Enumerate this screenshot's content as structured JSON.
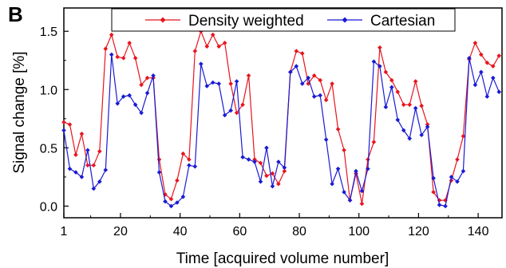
{
  "chart_data": {
    "type": "line",
    "panel_label": "B",
    "xlabel": "Time [acquired volume number]",
    "ylabel": "Signal change [%]",
    "xlim": [
      1,
      148
    ],
    "ylim": [
      -0.1,
      1.7
    ],
    "xticks": [
      1,
      20,
      40,
      60,
      80,
      100,
      120,
      140
    ],
    "yticks": [
      0.0,
      0.5,
      1.0,
      1.5
    ],
    "ytick_labels": [
      "0.0",
      "0.5",
      "1.0",
      "1.5"
    ],
    "grid": false,
    "legend": "top",
    "x": [
      1,
      3,
      5,
      7,
      9,
      11,
      13,
      15,
      17,
      19,
      21,
      23,
      25,
      27,
      29,
      31,
      33,
      35,
      37,
      39,
      41,
      43,
      45,
      47,
      49,
      51,
      53,
      55,
      57,
      59,
      61,
      63,
      65,
      67,
      69,
      71,
      73,
      75,
      77,
      79,
      81,
      83,
      85,
      87,
      89,
      91,
      93,
      95,
      97,
      99,
      101,
      103,
      105,
      107,
      109,
      111,
      113,
      115,
      117,
      119,
      121,
      123,
      125,
      127,
      129,
      131,
      133,
      135,
      137,
      139,
      141,
      143,
      145,
      147
    ],
    "series": [
      {
        "name": "Density weighted",
        "color": "#e8141e",
        "values": [
          0.72,
          0.7,
          0.44,
          0.62,
          0.35,
          0.35,
          0.47,
          1.35,
          1.47,
          1.28,
          1.27,
          1.4,
          1.27,
          1.04,
          1.1,
          1.1,
          0.4,
          0.1,
          0.06,
          0.22,
          0.45,
          0.4,
          1.33,
          1.5,
          1.37,
          1.47,
          1.37,
          1.4,
          1.05,
          0.8,
          0.87,
          1.12,
          0.4,
          0.37,
          0.26,
          0.28,
          0.19,
          0.3,
          1.15,
          1.33,
          1.31,
          1.05,
          1.12,
          1.08,
          0.91,
          1.05,
          0.66,
          0.48,
          0.05,
          0.28,
          0.02,
          0.4,
          0.55,
          1.36,
          1.15,
          1.08,
          0.98,
          0.87,
          0.87,
          1.07,
          0.86,
          0.7,
          0.12,
          0.05,
          0.05,
          0.22,
          0.4,
          0.6,
          1.26,
          1.4,
          1.3,
          1.23,
          1.2,
          1.29
        ]
      },
      {
        "name": "Cartesian",
        "color": "#1a1ad4",
        "values": [
          0.65,
          0.32,
          0.29,
          0.25,
          0.48,
          0.15,
          0.21,
          0.31,
          1.3,
          0.88,
          0.94,
          0.95,
          0.87,
          0.8,
          0.97,
          1.12,
          0.29,
          0.04,
          0.0,
          0.03,
          0.08,
          0.35,
          0.34,
          1.22,
          1.03,
          1.06,
          1.05,
          0.78,
          0.82,
          1.07,
          0.42,
          0.4,
          0.38,
          0.21,
          0.5,
          0.17,
          0.38,
          0.33,
          1.15,
          1.2,
          1.05,
          1.1,
          0.94,
          0.95,
          0.57,
          0.19,
          0.32,
          0.12,
          0.05,
          0.3,
          0.13,
          0.32,
          1.24,
          1.2,
          0.85,
          1.02,
          0.74,
          0.65,
          0.58,
          0.84,
          0.61,
          0.68,
          0.24,
          0.01,
          0.0,
          0.25,
          0.21,
          0.3,
          1.27,
          1.04,
          1.15,
          0.94,
          1.1,
          0.98
        ]
      }
    ]
  }
}
